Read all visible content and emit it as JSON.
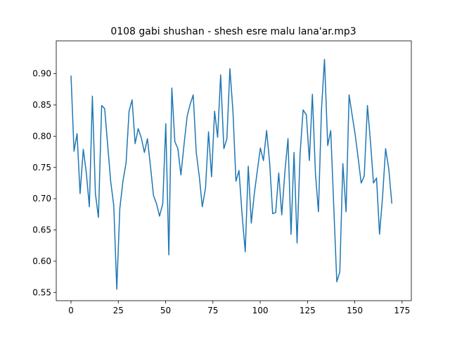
{
  "chart_data": {
    "type": "line",
    "title": "0108 gabi shushan - shesh esre malu lana'ar.mp3",
    "x": [
      0,
      1.6,
      3.2,
      4.8,
      6.5,
      8.1,
      9.7,
      11.3,
      12.9,
      14.5,
      16.2,
      17.8,
      19.4,
      21.0,
      22.6,
      24.2,
      25.8,
      27.5,
      29.1,
      30.7,
      32.3,
      33.9,
      35.5,
      37.1,
      38.8,
      40.4,
      42.0,
      43.6,
      45.2,
      46.8,
      48.5,
      50.1,
      51.7,
      53.3,
      54.9,
      56.5,
      58.1,
      59.8,
      61.4,
      63.0,
      64.6,
      66.2,
      67.8,
      69.4,
      71.1,
      72.7,
      74.3,
      75.9,
      77.5,
      79.1,
      80.8,
      82.4,
      84.0,
      85.6,
      87.2,
      88.8,
      90.4,
      92.1,
      93.7,
      95.3,
      96.9,
      98.5,
      100.1,
      101.7,
      103.4,
      105.0,
      106.6,
      108.2,
      109.8,
      111.4,
      113.1,
      114.7,
      116.3,
      117.9,
      119.5,
      121.1,
      122.7,
      124.4,
      126.0,
      127.6,
      129.2,
      130.8,
      132.4,
      134.0,
      135.7,
      137.3,
      138.9,
      140.5,
      142.1,
      143.7,
      145.4,
      147.0,
      148.6,
      150.2,
      151.8,
      153.4,
      155.0,
      156.7,
      158.3,
      159.9,
      161.5,
      163.1,
      164.7,
      166.3,
      168.0,
      169.6
    ],
    "series": [
      {
        "color": "#1f77b4",
        "values": [
          0.897,
          0.776,
          0.804,
          0.708,
          0.779,
          0.741,
          0.687,
          0.864,
          0.708,
          0.67,
          0.849,
          0.844,
          0.785,
          0.727,
          0.689,
          0.555,
          0.684,
          0.729,
          0.757,
          0.84,
          0.858,
          0.788,
          0.812,
          0.798,
          0.774,
          0.796,
          0.752,
          0.705,
          0.692,
          0.672,
          0.692,
          0.82,
          0.61,
          0.877,
          0.791,
          0.78,
          0.738,
          0.788,
          0.832,
          0.851,
          0.866,
          0.774,
          0.736,
          0.687,
          0.717,
          0.807,
          0.735,
          0.84,
          0.798,
          0.898,
          0.78,
          0.796,
          0.908,
          0.84,
          0.728,
          0.745,
          0.676,
          0.615,
          0.752,
          0.661,
          0.708,
          0.745,
          0.781,
          0.761,
          0.809,
          0.758,
          0.676,
          0.678,
          0.741,
          0.674,
          0.744,
          0.796,
          0.643,
          0.774,
          0.629,
          0.772,
          0.842,
          0.834,
          0.761,
          0.867,
          0.741,
          0.679,
          0.842,
          0.923,
          0.785,
          0.809,
          0.687,
          0.567,
          0.583,
          0.756,
          0.679,
          0.866,
          0.834,
          0.803,
          0.765,
          0.725,
          0.736,
          0.849,
          0.791,
          0.725,
          0.733,
          0.643,
          0.703,
          0.78,
          0.747,
          0.692
        ]
      }
    ],
    "xlim": [
      -7.8,
      179.9
    ],
    "ylim": [
      0.5368,
      0.9525
    ],
    "xticks": [
      0,
      25,
      50,
      75,
      100,
      125,
      150,
      175
    ],
    "yticks": [
      0.55,
      {
        "value": 0.6,
        "label": "0.60"
      },
      0.65,
      {
        "value": 0.7,
        "label": "0.70"
      },
      0.75,
      {
        "value": 0.8,
        "label": "0.80"
      },
      0.85,
      {
        "value": 0.9,
        "label": "0.90"
      }
    ]
  }
}
